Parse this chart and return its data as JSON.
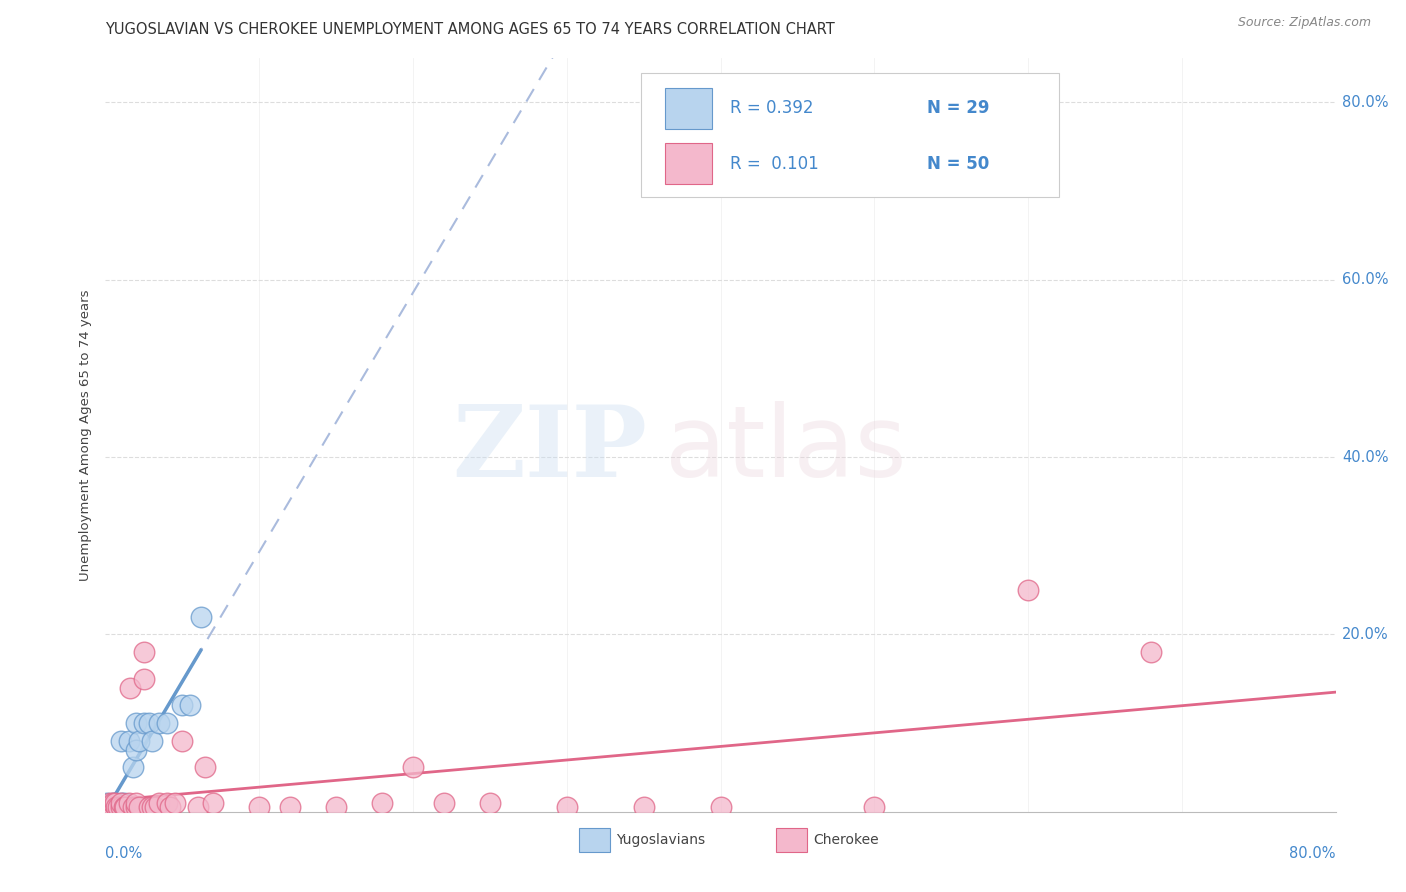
{
  "title": "YUGOSLAVIAN VS CHEROKEE UNEMPLOYMENT AMONG AGES 65 TO 74 YEARS CORRELATION CHART",
  "source": "Source: ZipAtlas.com",
  "ylabel": "Unemployment Among Ages 65 to 74 years",
  "xlim": [
    0.0,
    0.8
  ],
  "ylim": [
    0.0,
    0.85
  ],
  "ytick_right_labels": [
    "80.0%",
    "60.0%",
    "40.0%",
    "20.0%"
  ],
  "ytick_right_positions": [
    0.8,
    0.6,
    0.4,
    0.2
  ],
  "color_yugo_fill": "#b8d4ee",
  "color_cherokee_fill": "#f4b8cc",
  "color_yugo_edge": "#6699cc",
  "color_cherokee_edge": "#e06688",
  "color_text_blue": "#4488cc",
  "color_legend_border": "#cccccc",
  "yugo_x": [
    0.001,
    0.001,
    0.002,
    0.002,
    0.003,
    0.003,
    0.004,
    0.005,
    0.005,
    0.006,
    0.007,
    0.008,
    0.009,
    0.01,
    0.01,
    0.012,
    0.015,
    0.018,
    0.02,
    0.02,
    0.022,
    0.025,
    0.028,
    0.03,
    0.035,
    0.04,
    0.05,
    0.055,
    0.062
  ],
  "yugo_y": [
    0.01,
    0.005,
    0.005,
    0.008,
    0.005,
    0.008,
    0.005,
    0.005,
    0.01,
    0.01,
    0.005,
    0.005,
    0.005,
    0.01,
    0.08,
    0.01,
    0.08,
    0.05,
    0.07,
    0.1,
    0.08,
    0.1,
    0.1,
    0.08,
    0.1,
    0.1,
    0.12,
    0.12,
    0.22
  ],
  "cherokee_x": [
    0.001,
    0.001,
    0.001,
    0.002,
    0.002,
    0.003,
    0.003,
    0.004,
    0.004,
    0.005,
    0.005,
    0.006,
    0.007,
    0.008,
    0.01,
    0.01,
    0.012,
    0.013,
    0.015,
    0.016,
    0.018,
    0.02,
    0.02,
    0.022,
    0.025,
    0.025,
    0.028,
    0.03,
    0.032,
    0.035,
    0.04,
    0.042,
    0.045,
    0.05,
    0.06,
    0.065,
    0.07,
    0.1,
    0.12,
    0.15,
    0.18,
    0.2,
    0.22,
    0.25,
    0.3,
    0.35,
    0.4,
    0.5,
    0.6,
    0.68
  ],
  "cherokee_y": [
    0.005,
    0.005,
    0.005,
    0.005,
    0.005,
    0.005,
    0.01,
    0.005,
    0.005,
    0.005,
    0.01,
    0.01,
    0.005,
    0.005,
    0.005,
    0.01,
    0.005,
    0.005,
    0.01,
    0.14,
    0.005,
    0.005,
    0.01,
    0.005,
    0.15,
    0.18,
    0.005,
    0.005,
    0.005,
    0.01,
    0.01,
    0.005,
    0.01,
    0.08,
    0.005,
    0.05,
    0.01,
    0.005,
    0.005,
    0.005,
    0.01,
    0.05,
    0.01,
    0.01,
    0.005,
    0.005,
    0.005,
    0.005,
    0.25,
    0.18
  ],
  "legend_r1": "R = 0.392",
  "legend_n1": "N = 29",
  "legend_r2": "R =  0.101",
  "legend_n2": "N = 50"
}
